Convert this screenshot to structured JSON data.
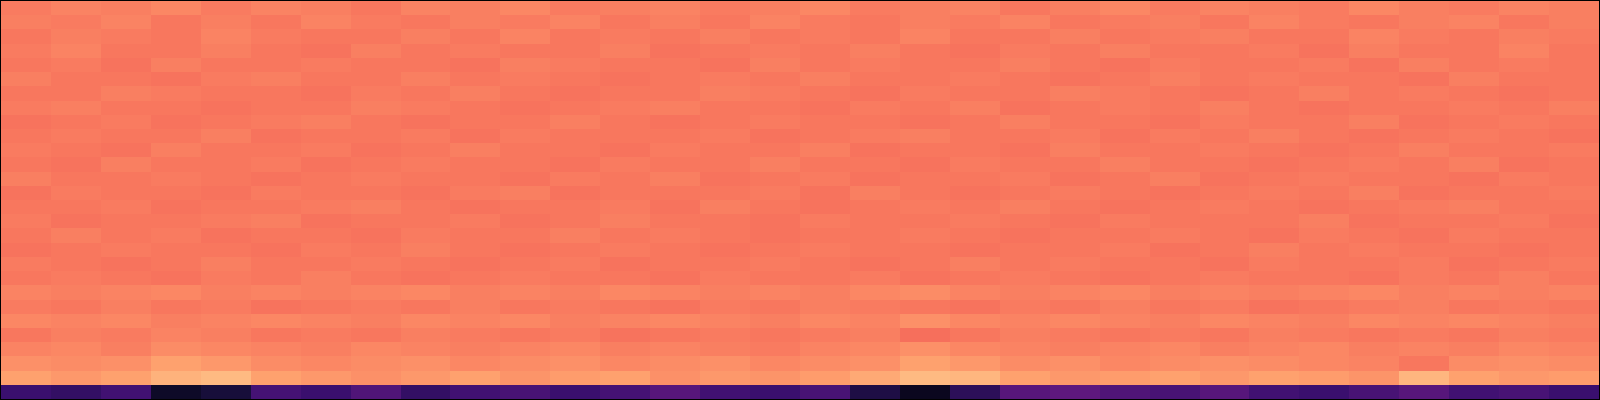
{
  "chart_data": {
    "type": "heatmap",
    "tick_labels": false,
    "zlim": [
      0,
      1.12
    ],
    "z": [
      [
        0.22,
        0.2,
        0.24,
        0.08,
        0.12,
        0.25,
        0.22,
        0.28,
        0.2,
        0.24,
        0.26,
        0.22,
        0.25,
        0.3,
        0.24,
        0.22,
        0.26,
        0.14,
        0.06,
        0.18,
        0.3,
        0.32,
        0.28,
        0.26,
        0.3,
        0.24,
        0.22,
        0.26,
        0.3,
        0.24,
        0.26,
        0.22
      ],
      [
        0.9,
        0.88,
        0.9,
        0.94,
        0.96,
        0.9,
        0.88,
        0.86,
        0.88,
        0.9,
        0.87,
        0.89,
        0.9,
        0.86,
        0.88,
        0.87,
        0.89,
        0.92,
        0.96,
        0.95,
        0.9,
        0.88,
        0.89,
        0.9,
        0.88,
        0.9,
        0.89,
        0.87,
        0.95,
        0.9,
        0.88,
        0.89
      ],
      [
        0.86,
        0.85,
        0.86,
        0.9,
        0.88,
        0.85,
        0.84,
        0.85,
        0.86,
        0.84,
        0.85,
        0.86,
        0.84,
        0.85,
        0.86,
        0.84,
        0.85,
        0.86,
        0.9,
        0.88,
        0.85,
        0.86,
        0.84,
        0.85,
        0.86,
        0.85,
        0.84,
        0.83,
        0.8,
        0.85,
        0.86,
        0.85
      ],
      [
        0.83,
        0.84,
        0.82,
        0.85,
        0.84,
        0.83,
        0.82,
        0.84,
        0.83,
        0.82,
        0.83,
        0.84,
        0.82,
        0.83,
        0.82,
        0.81,
        0.83,
        0.84,
        0.86,
        0.84,
        0.83,
        0.82,
        0.83,
        0.84,
        0.82,
        0.83,
        0.84,
        0.82,
        0.83,
        0.82,
        0.84,
        0.83
      ],
      [
        0.8,
        0.82,
        0.81,
        0.83,
        0.82,
        0.8,
        0.81,
        0.8,
        0.82,
        0.81,
        0.8,
        0.81,
        0.79,
        0.8,
        0.81,
        0.8,
        0.81,
        0.82,
        0.78,
        0.8,
        0.82,
        0.81,
        0.8,
        0.81,
        0.8,
        0.82,
        0.81,
        0.8,
        0.81,
        0.8,
        0.82,
        0.81
      ],
      [
        0.84,
        0.83,
        0.84,
        0.82,
        0.83,
        0.84,
        0.83,
        0.82,
        0.84,
        0.83,
        0.84,
        0.82,
        0.83,
        0.84,
        0.83,
        0.82,
        0.84,
        0.83,
        0.86,
        0.84,
        0.83,
        0.84,
        0.83,
        0.82,
        0.84,
        0.83,
        0.82,
        0.84,
        0.83,
        0.84,
        0.83,
        0.82
      ],
      [
        0.81,
        0.8,
        0.82,
        0.8,
        0.81,
        0.79,
        0.8,
        0.81,
        0.8,
        0.82,
        0.8,
        0.81,
        0.8,
        0.79,
        0.81,
        0.8,
        0.82,
        0.81,
        0.8,
        0.79,
        0.81,
        0.8,
        0.82,
        0.8,
        0.81,
        0.79,
        0.8,
        0.81,
        0.82,
        0.8,
        0.81,
        0.8
      ],
      [
        0.83,
        0.82,
        0.83,
        0.84,
        0.82,
        0.83,
        0.82,
        0.83,
        0.84,
        0.82,
        0.83,
        0.82,
        0.84,
        0.83,
        0.82,
        0.83,
        0.82,
        0.84,
        0.85,
        0.83,
        0.82,
        0.83,
        0.84,
        0.82,
        0.83,
        0.82,
        0.83,
        0.84,
        0.82,
        0.83,
        0.82,
        0.83
      ],
      [
        0.8,
        0.81,
        0.8,
        0.79,
        0.81,
        0.8,
        0.82,
        0.8,
        0.79,
        0.8,
        0.81,
        0.8,
        0.8,
        0.79,
        0.81,
        0.8,
        0.8,
        0.81,
        0.79,
        0.8,
        0.81,
        0.8,
        0.79,
        0.8,
        0.81,
        0.8,
        0.8,
        0.79,
        0.81,
        0.8,
        0.82,
        0.8
      ],
      [
        0.81,
        0.8,
        0.79,
        0.8,
        0.82,
        0.8,
        0.8,
        0.81,
        0.8,
        0.79,
        0.8,
        0.81,
        0.79,
        0.8,
        0.8,
        0.81,
        0.8,
        0.79,
        0.8,
        0.82,
        0.8,
        0.81,
        0.8,
        0.8,
        0.79,
        0.81,
        0.8,
        0.8,
        0.81,
        0.79,
        0.8,
        0.81
      ],
      [
        0.79,
        0.8,
        0.81,
        0.8,
        0.8,
        0.79,
        0.81,
        0.8,
        0.82,
        0.8,
        0.79,
        0.8,
        0.81,
        0.8,
        0.79,
        0.8,
        0.81,
        0.8,
        0.8,
        0.79,
        0.8,
        0.8,
        0.81,
        0.79,
        0.8,
        0.82,
        0.8,
        0.81,
        0.8,
        0.8,
        0.79,
        0.8
      ],
      [
        0.8,
        0.82,
        0.8,
        0.81,
        0.79,
        0.8,
        0.8,
        0.79,
        0.81,
        0.8,
        0.8,
        0.82,
        0.8,
        0.81,
        0.8,
        0.79,
        0.8,
        0.8,
        0.81,
        0.8,
        0.79,
        0.8,
        0.8,
        0.81,
        0.8,
        0.79,
        0.81,
        0.8,
        0.79,
        0.81,
        0.8,
        0.8
      ],
      [
        0.81,
        0.79,
        0.8,
        0.8,
        0.81,
        0.82,
        0.79,
        0.8,
        0.8,
        0.81,
        0.79,
        0.8,
        0.82,
        0.8,
        0.8,
        0.79,
        0.81,
        0.8,
        0.8,
        0.81,
        0.8,
        0.79,
        0.81,
        0.8,
        0.8,
        0.8,
        0.82,
        0.79,
        0.8,
        0.8,
        0.81,
        0.79
      ],
      [
        0.8,
        0.8,
        0.81,
        0.79,
        0.8,
        0.8,
        0.81,
        0.82,
        0.8,
        0.79,
        0.8,
        0.8,
        0.81,
        0.79,
        0.82,
        0.8,
        0.79,
        0.8,
        0.81,
        0.8,
        0.82,
        0.8,
        0.79,
        0.8,
        0.81,
        0.8,
        0.79,
        0.8,
        0.81,
        0.82,
        0.8,
        0.8
      ],
      [
        0.79,
        0.81,
        0.8,
        0.8,
        0.79,
        0.81,
        0.8,
        0.8,
        0.79,
        0.81,
        0.82,
        0.79,
        0.8,
        0.8,
        0.8,
        0.81,
        0.79,
        0.82,
        0.8,
        0.79,
        0.8,
        0.81,
        0.8,
        0.79,
        0.8,
        0.81,
        0.8,
        0.82,
        0.79,
        0.8,
        0.8,
        0.81
      ],
      [
        0.82,
        0.8,
        0.8,
        0.81,
        0.8,
        0.79,
        0.8,
        0.81,
        0.8,
        0.8,
        0.79,
        0.81,
        0.8,
        0.82,
        0.79,
        0.8,
        0.81,
        0.79,
        0.8,
        0.8,
        0.81,
        0.79,
        0.8,
        0.82,
        0.79,
        0.8,
        0.81,
        0.8,
        0.8,
        0.79,
        0.81,
        0.8
      ],
      [
        0.8,
        0.79,
        0.82,
        0.8,
        0.8,
        0.81,
        0.79,
        0.8,
        0.81,
        0.8,
        0.8,
        0.79,
        0.81,
        0.8,
        0.8,
        0.82,
        0.8,
        0.8,
        0.79,
        0.81,
        0.8,
        0.8,
        0.82,
        0.8,
        0.8,
        0.79,
        0.8,
        0.81,
        0.8,
        0.82,
        0.79,
        0.8
      ],
      [
        0.81,
        0.8,
        0.79,
        0.82,
        0.8,
        0.8,
        0.81,
        0.79,
        0.8,
        0.82,
        0.8,
        0.8,
        0.79,
        0.81,
        0.8,
        0.8,
        0.82,
        0.79,
        0.8,
        0.8,
        0.79,
        0.82,
        0.8,
        0.8,
        0.81,
        0.8,
        0.79,
        0.8,
        0.82,
        0.8,
        0.8,
        0.81
      ],
      [
        0.8,
        0.81,
        0.8,
        0.8,
        0.82,
        0.79,
        0.8,
        0.8,
        0.81,
        0.79,
        0.81,
        0.8,
        0.8,
        0.8,
        0.81,
        0.79,
        0.8,
        0.81,
        0.82,
        0.8,
        0.8,
        0.81,
        0.79,
        0.81,
        0.8,
        0.82,
        0.8,
        0.79,
        0.8,
        0.81,
        0.8,
        0.79
      ],
      [
        0.79,
        0.8,
        0.81,
        0.79,
        0.8,
        0.81,
        0.82,
        0.8,
        0.79,
        0.8,
        0.8,
        0.82,
        0.8,
        0.79,
        0.8,
        0.81,
        0.8,
        0.8,
        0.79,
        0.8,
        0.82,
        0.8,
        0.8,
        0.79,
        0.81,
        0.8,
        0.8,
        0.82,
        0.79,
        0.8,
        0.81,
        0.8
      ],
      [
        0.81,
        0.82,
        0.8,
        0.8,
        0.79,
        0.8,
        0.8,
        0.82,
        0.81,
        0.8,
        0.79,
        0.8,
        0.81,
        0.82,
        0.8,
        0.8,
        0.79,
        0.81,
        0.8,
        0.82,
        0.79,
        0.8,
        0.81,
        0.8,
        0.82,
        0.8,
        0.79,
        0.8,
        0.8,
        0.81,
        0.8,
        0.82
      ],
      [
        0.8,
        0.8,
        0.82,
        0.81,
        0.8,
        0.8,
        0.79,
        0.81,
        0.8,
        0.82,
        0.8,
        0.79,
        0.8,
        0.8,
        0.82,
        0.81,
        0.8,
        0.79,
        0.81,
        0.8,
        0.8,
        0.82,
        0.81,
        0.8,
        0.79,
        0.8,
        0.82,
        0.8,
        0.81,
        0.8,
        0.79,
        0.8
      ],
      [
        0.82,
        0.8,
        0.8,
        0.79,
        0.81,
        0.82,
        0.8,
        0.8,
        0.82,
        0.8,
        0.81,
        0.8,
        0.79,
        0.8,
        0.81,
        0.8,
        0.82,
        0.8,
        0.8,
        0.81,
        0.8,
        0.79,
        0.8,
        0.82,
        0.8,
        0.81,
        0.8,
        0.8,
        0.79,
        0.82,
        0.8,
        0.8
      ],
      [
        0.8,
        0.81,
        0.79,
        0.82,
        0.8,
        0.8,
        0.81,
        0.8,
        0.8,
        0.79,
        0.82,
        0.81,
        0.8,
        0.8,
        0.79,
        0.82,
        0.8,
        0.81,
        0.8,
        0.8,
        0.82,
        0.8,
        0.79,
        0.81,
        0.8,
        0.8,
        0.81,
        0.79,
        0.82,
        0.8,
        0.81,
        0.8
      ],
      [
        0.81,
        0.83,
        0.8,
        0.8,
        0.82,
        0.8,
        0.79,
        0.82,
        0.8,
        0.81,
        0.8,
        0.8,
        0.82,
        0.79,
        0.8,
        0.81,
        0.8,
        0.82,
        0.8,
        0.79,
        0.81,
        0.8,
        0.82,
        0.8,
        0.8,
        0.81,
        0.79,
        0.82,
        0.8,
        0.8,
        0.83,
        0.8
      ],
      [
        0.8,
        0.82,
        0.81,
        0.8,
        0.83,
        0.81,
        0.8,
        0.8,
        0.82,
        0.8,
        0.83,
        0.8,
        0.81,
        0.8,
        0.82,
        0.8,
        0.81,
        0.8,
        0.83,
        0.8,
        0.8,
        0.82,
        0.8,
        0.81,
        0.82,
        0.8,
        0.8,
        0.83,
        0.81,
        0.8,
        0.82,
        0.81
      ],
      [
        0.82,
        0.81,
        0.83,
        0.8,
        0.82,
        0.8,
        0.83,
        0.81,
        0.8,
        0.82,
        0.81,
        0.83,
        0.8,
        0.82,
        0.8,
        0.83,
        0.81,
        0.8,
        0.82,
        0.81,
        0.83,
        0.8,
        0.81,
        0.82,
        0.8,
        0.83,
        0.81,
        0.8,
        0.82,
        0.83,
        0.8,
        0.82
      ],
      [
        0.81,
        0.83,
        0.82,
        0.84,
        0.81,
        0.83,
        0.82,
        0.8,
        0.83,
        0.82,
        0.84,
        0.81,
        0.82,
        0.83,
        0.81,
        0.82,
        0.84,
        0.81,
        0.82,
        0.83,
        0.8,
        0.82,
        0.84,
        0.81,
        0.83,
        0.82,
        0.81,
        0.84,
        0.82,
        0.81,
        0.83,
        0.82
      ]
    ]
  }
}
